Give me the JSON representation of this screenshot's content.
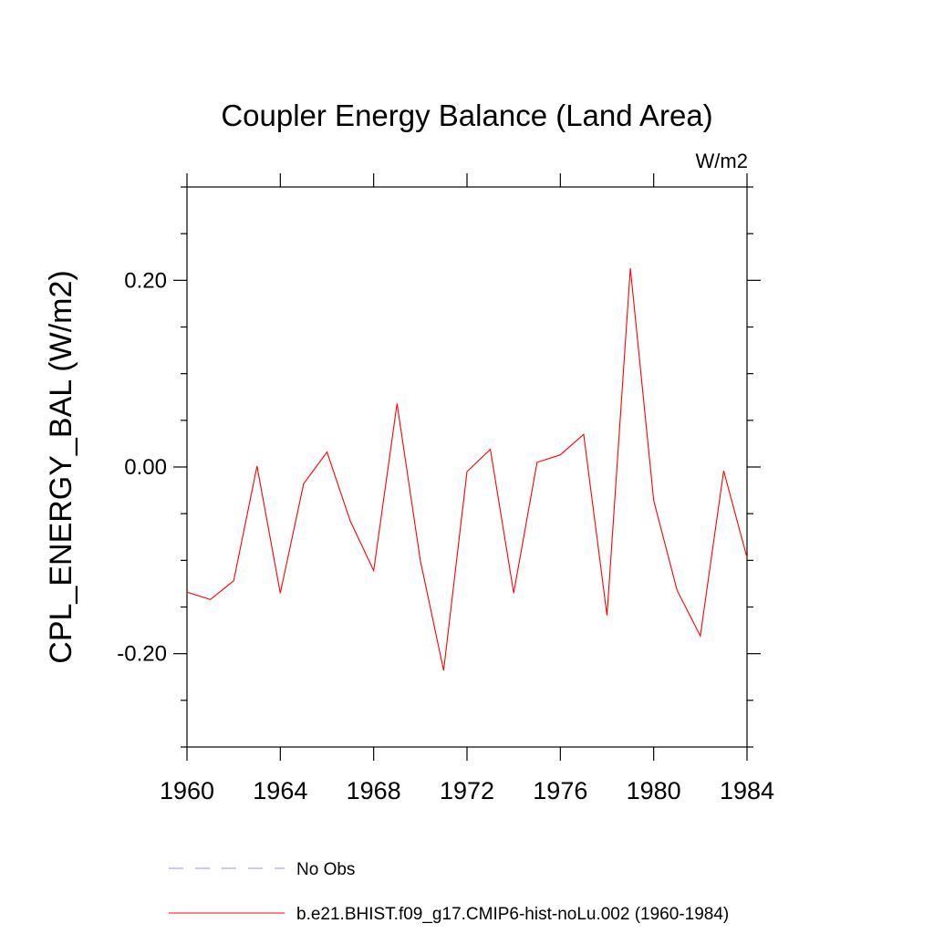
{
  "chart_data": {
    "type": "line",
    "title": "Coupler Energy Balance (Land Area)",
    "units": "W/m2",
    "ylabel": "CPL_ENERGY_BAL  (W/m2)",
    "xlabel": "",
    "xlim": [
      1960,
      1984
    ],
    "ylim": [
      -0.3,
      0.3
    ],
    "xticks": [
      1960,
      1964,
      1968,
      1972,
      1976,
      1980,
      1984
    ],
    "xtick_labels": [
      "1960",
      "1964",
      "1968",
      "1972",
      "1976",
      "1980",
      "1984"
    ],
    "yticks": [
      -0.2,
      0.0,
      0.2
    ],
    "ytick_labels": [
      "-0.20",
      "0.00",
      "0.20"
    ],
    "grid": false,
    "legend_position": "bottom",
    "series": [
      {
        "name": "b.e21.BHIST.f09_g17.CMIP6-hist-noLu.002 (1960-1984)",
        "color": "#ff0000",
        "style": "solid",
        "x": [
          1960,
          1961,
          1962,
          1963,
          1964,
          1965,
          1966,
          1967,
          1968,
          1969,
          1970,
          1971,
          1972,
          1973,
          1974,
          1975,
          1976,
          1977,
          1978,
          1979,
          1980,
          1981,
          1982,
          1983,
          1984
        ],
        "values": [
          -0.134,
          -0.142,
          -0.122,
          0.001,
          -0.135,
          -0.018,
          0.016,
          -0.058,
          -0.111,
          0.068,
          -0.1,
          -0.218,
          -0.005,
          0.019,
          -0.135,
          0.005,
          0.013,
          0.035,
          -0.159,
          0.213,
          -0.036,
          -0.132,
          -0.181,
          -0.004,
          -0.097
        ]
      }
    ],
    "legend": [
      {
        "label": "No Obs",
        "color": "#9f94c8",
        "style": "dashed"
      },
      {
        "label": "b.e21.BHIST.f09_g17.CMIP6-hist-noLu.002 (1960-1984)",
        "color": "#ff0000",
        "style": "solid"
      }
    ]
  }
}
